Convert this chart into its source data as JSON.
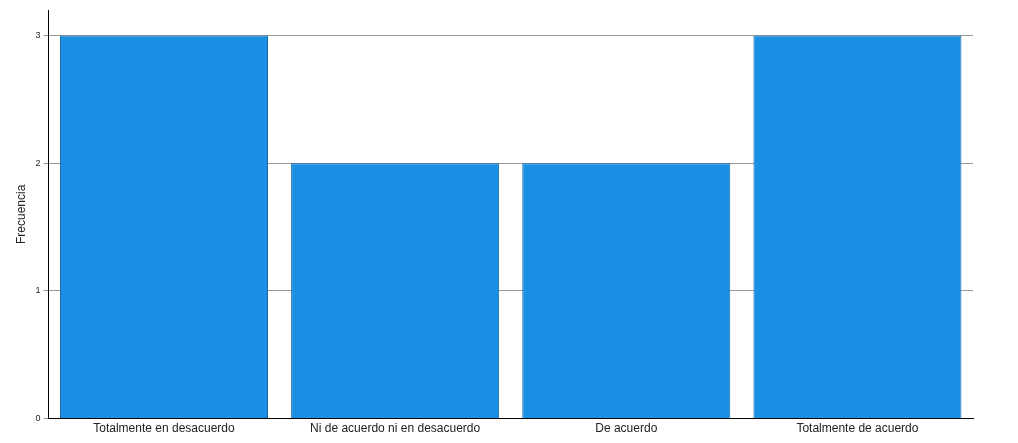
{
  "chart_data": {
    "type": "bar",
    "ylabel": "Frecuencia",
    "categories": [
      "Totalmente en desacuerdo",
      "Ni de acuerdo ni en desacuerdo",
      "De acuerdo",
      "Totalmente de acuerdo"
    ],
    "values": [
      3,
      2,
      2,
      3
    ],
    "color": "#1a8fe3",
    "ylim": [
      0,
      3.2
    ],
    "yticks": [
      0,
      1,
      2,
      3
    ],
    "grid": "y",
    "legend": false
  }
}
